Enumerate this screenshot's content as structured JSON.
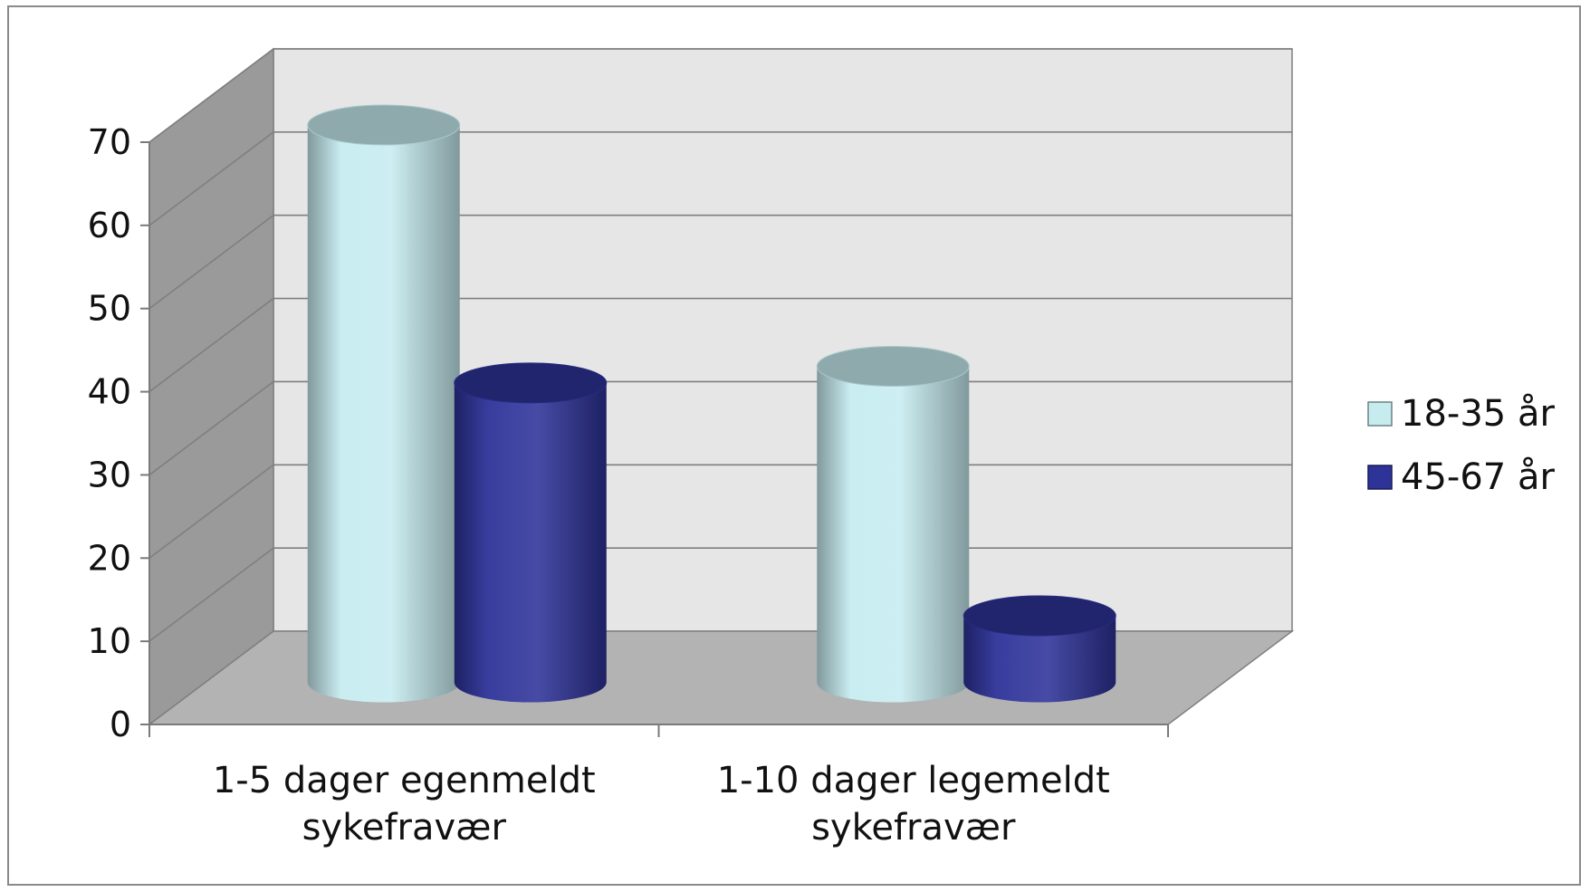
{
  "chart_data": {
    "type": "bar",
    "style": "3d-cylinder",
    "categories": [
      [
        "1-5 dager egenmeldt",
        "sykefravær"
      ],
      [
        "1-10 dager legemeldt",
        "sykefravær"
      ]
    ],
    "series": [
      {
        "name": "18-35 år",
        "values": [
          67,
          38
        ],
        "color": "#c6ecf0"
      },
      {
        "name": "45-67 år",
        "values": [
          36,
          8
        ],
        "color": "#2e3399"
      }
    ],
    "ylim": [
      0,
      70
    ],
    "yticks": [
      "0",
      "10",
      "20",
      "30",
      "40",
      "50",
      "60",
      "70"
    ],
    "grid": true,
    "legend_position": "right",
    "colors": {
      "back_wall": "#e6e6e6",
      "side_wall": "#9a9a9a",
      "floor": "#b3b3b3",
      "gridline": "#7f7f7f"
    }
  }
}
